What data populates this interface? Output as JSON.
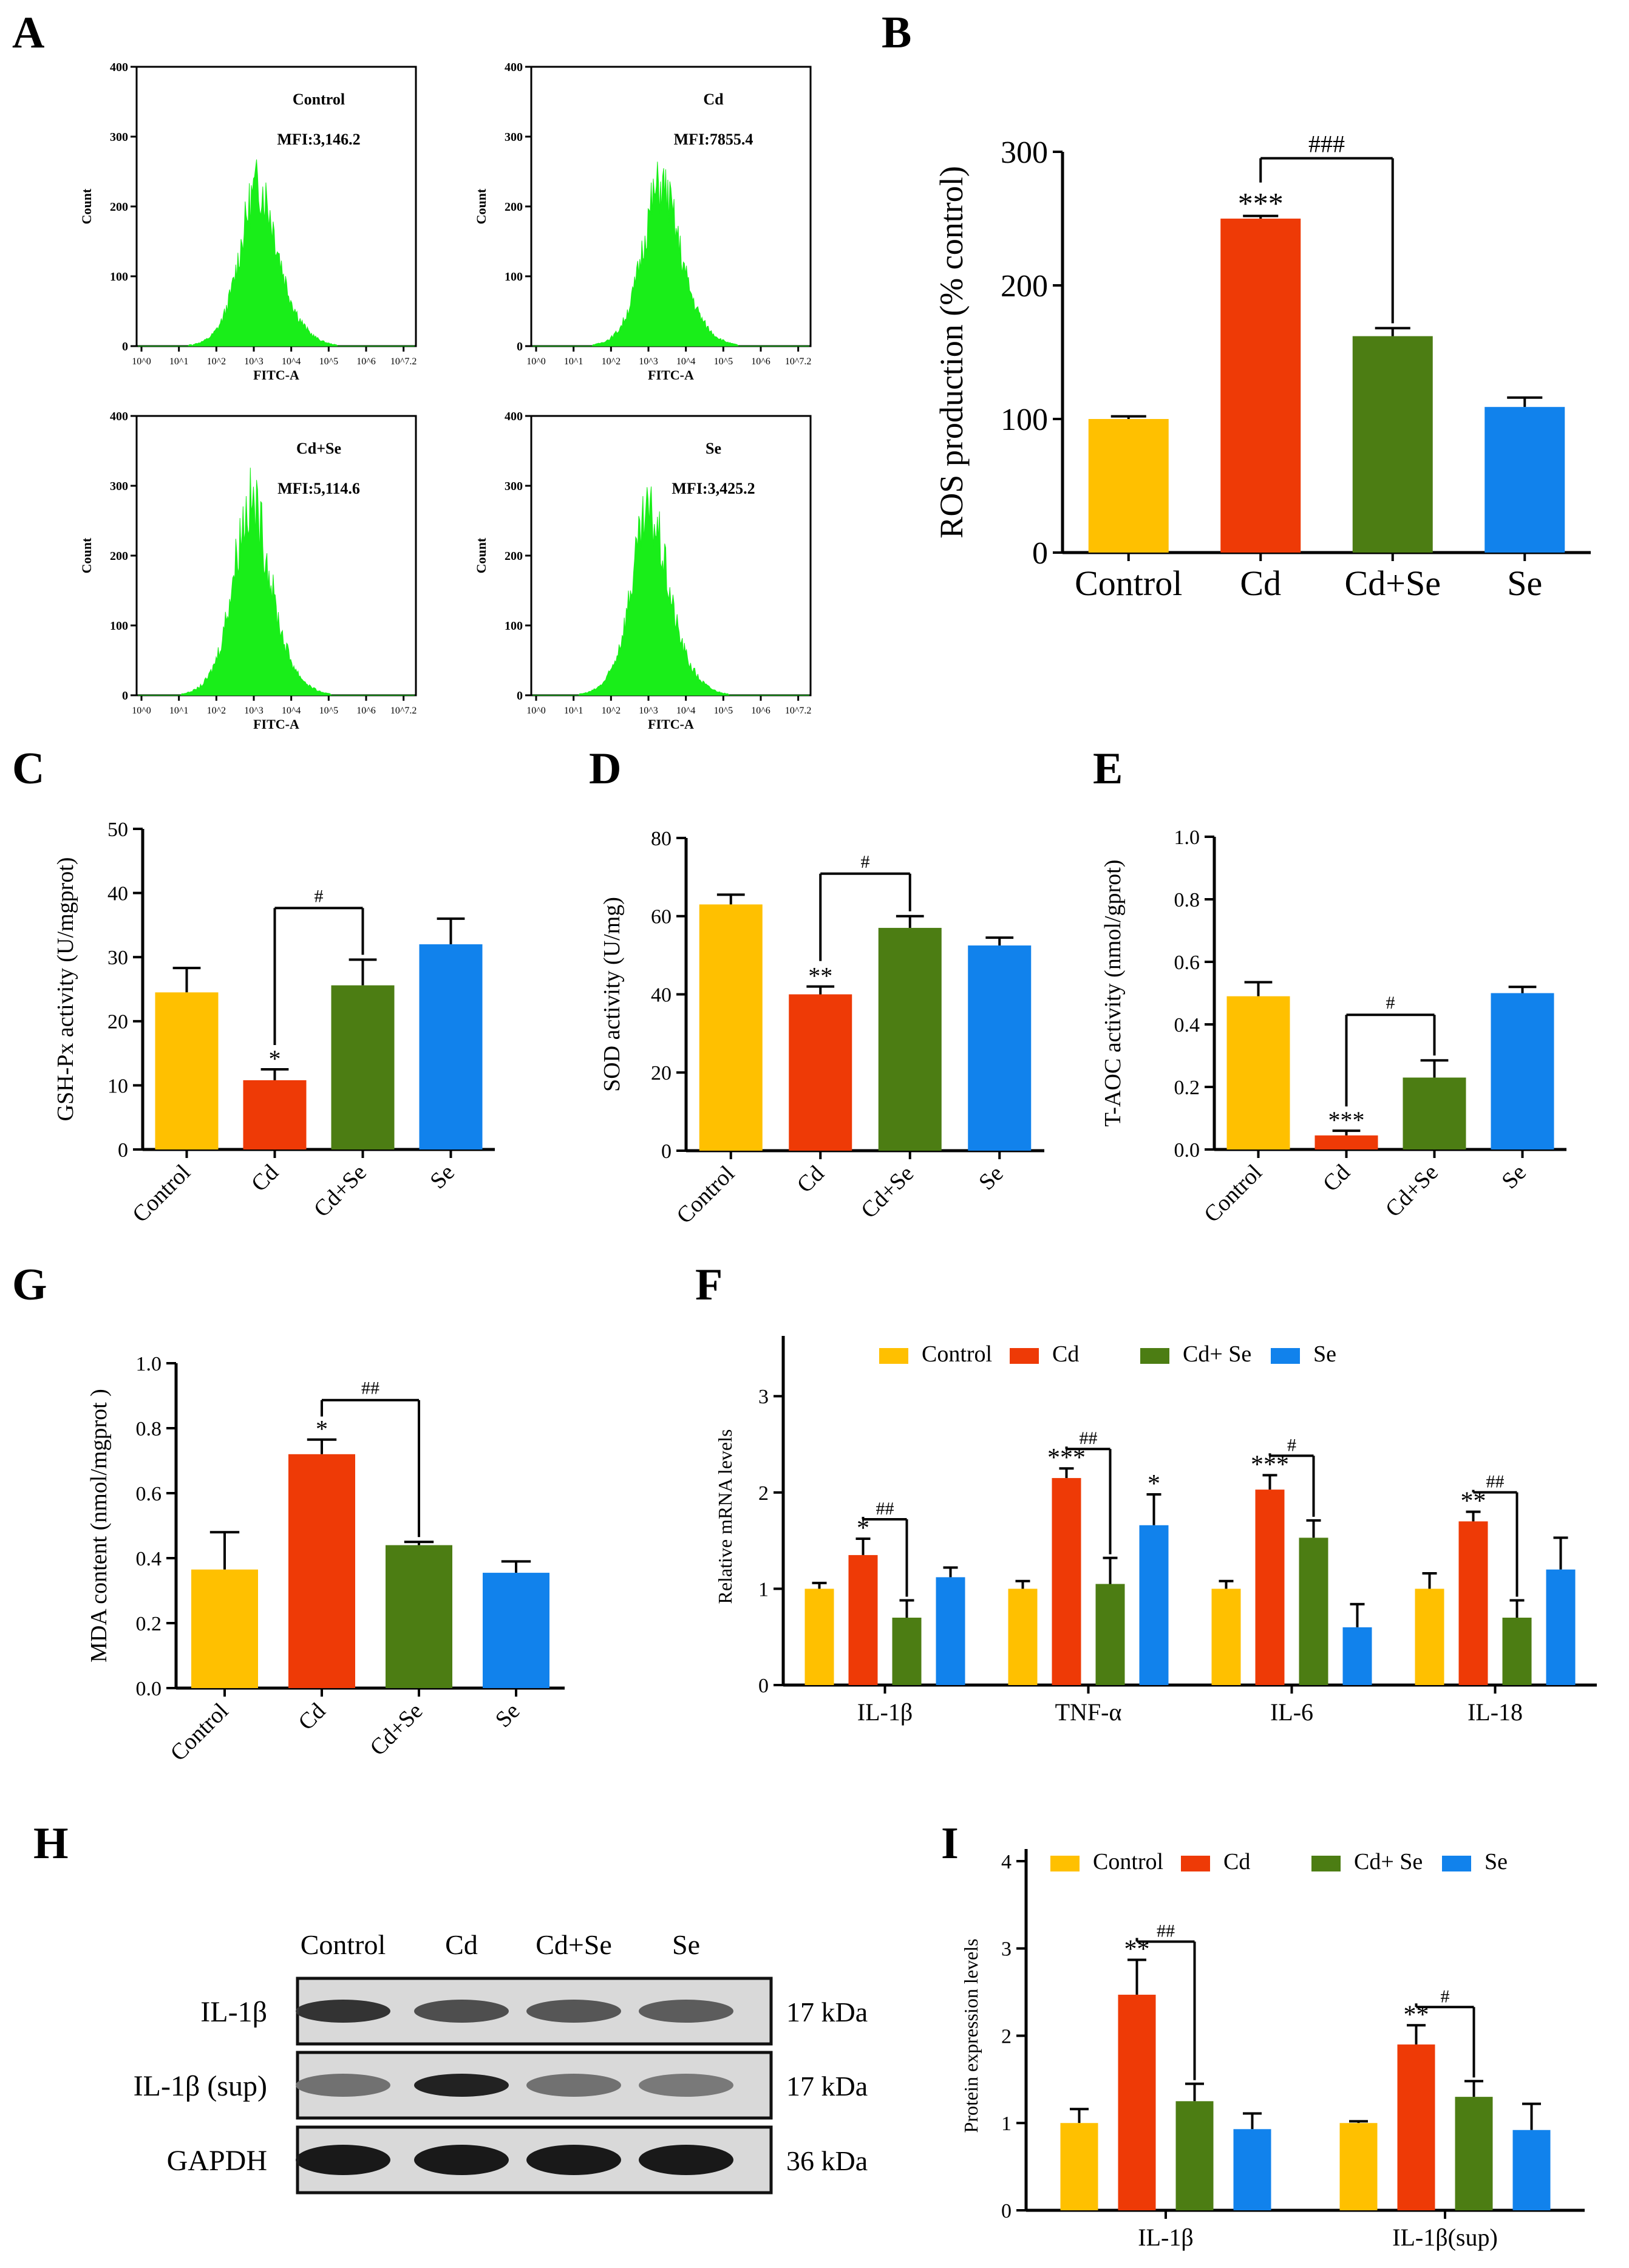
{
  "colors": {
    "Control": "#FFC000",
    "Cd": "#EE3A06",
    "Cd+Se": "#4C7D13",
    "Se": "#1182EC",
    "histogram": "#19EE19",
    "axis": "#000000"
  },
  "chart_data": [
    {
      "panel": "A",
      "type": "histogram",
      "subplots": [
        {
          "label": "Control",
          "mfi": "MFI:3,146.2",
          "peak_count": 250,
          "peak_decade": 3.1
        },
        {
          "label": "Cd",
          "mfi": "MFI:7855.4",
          "peak_count": 250,
          "peak_decade": 3.3
        },
        {
          "label": "Cd+Se",
          "mfi": "MFI:5,114.6",
          "peak_count": 300,
          "peak_decade": 2.9
        },
        {
          "label": "Se",
          "mfi": "MFI:3,425.2",
          "peak_count": 280,
          "peak_decade": 3.0
        }
      ],
      "xlabel": "FITC-A",
      "ylabel": "Count",
      "yticks": [
        "0",
        "100",
        "200",
        "300",
        "400"
      ],
      "xticks": [
        "10^0",
        "10^1",
        "10^2",
        "10^3",
        "10^4",
        "10^5",
        "10^6",
        "10^7.2"
      ]
    },
    {
      "panel": "B",
      "type": "bar",
      "categories": [
        "Control",
        "Cd",
        "Cd+Se",
        "Se"
      ],
      "values": [
        100,
        250,
        162,
        109
      ],
      "errors": [
        2,
        2,
        6,
        7
      ],
      "ylabel": "ROS production (% control)",
      "ylim": [
        0,
        300
      ],
      "yticks": [
        "0",
        "100",
        "200",
        "300"
      ],
      "annotations": [
        {
          "bar": 1,
          "text": "***"
        },
        {
          "bracket": [
            1,
            2
          ],
          "text": "###"
        }
      ]
    },
    {
      "panel": "C",
      "type": "bar",
      "categories": [
        "Control",
        "Cd",
        "Cd+Se",
        "Se"
      ],
      "values": [
        24.5,
        10.8,
        25.6,
        32.0
      ],
      "errors": [
        3.8,
        1.7,
        4.0,
        4.0
      ],
      "ylabel": "GSH-Px activity (U/mgprot)",
      "ylim": [
        0,
        50
      ],
      "yticks": [
        "0",
        "10",
        "20",
        "30",
        "40",
        "50"
      ],
      "annotations": [
        {
          "bar": 1,
          "text": "*"
        },
        {
          "bracket": [
            1,
            2
          ],
          "text": "#"
        }
      ]
    },
    {
      "panel": "D",
      "type": "bar",
      "categories": [
        "Control",
        "Cd",
        "Cd+Se",
        "Se"
      ],
      "values": [
        63,
        40,
        57,
        52.5
      ],
      "errors": [
        2.5,
        2,
        3,
        2
      ],
      "ylabel": "SOD activity (U/mg)",
      "ylim": [
        0,
        80
      ],
      "yticks": [
        "0",
        "20",
        "40",
        "60",
        "80"
      ],
      "annotations": [
        {
          "bar": 1,
          "text": "**"
        },
        {
          "bracket": [
            1,
            2
          ],
          "text": "#"
        }
      ]
    },
    {
      "panel": "E",
      "type": "bar",
      "categories": [
        "Control",
        "Cd",
        "Cd+Se",
        "Se"
      ],
      "values": [
        0.49,
        0.045,
        0.23,
        0.5
      ],
      "errors": [
        0.045,
        0.015,
        0.055,
        0.02
      ],
      "ylabel": "T-AOC activity (nmol/gprot)",
      "ylim": [
        0,
        1.0
      ],
      "yticks": [
        "0.0",
        "0.2",
        "0.4",
        "0.6",
        "0.8",
        "1.0"
      ],
      "annotations": [
        {
          "bar": 1,
          "text": "***"
        },
        {
          "bracket": [
            1,
            2
          ],
          "text": "#"
        }
      ]
    },
    {
      "panel": "G",
      "type": "bar",
      "categories": [
        "Control",
        "Cd",
        "Cd+Se",
        "Se"
      ],
      "values": [
        0.365,
        0.72,
        0.44,
        0.355
      ],
      "errors": [
        0.115,
        0.045,
        0.01,
        0.035
      ],
      "ylabel": "MDA content (nmol/mgprot )",
      "ylim": [
        0,
        1.0
      ],
      "yticks": [
        "0.0",
        "0.2",
        "0.4",
        "0.6",
        "0.8",
        "1.0"
      ],
      "annotations": [
        {
          "bar": 1,
          "text": "*"
        },
        {
          "bracket": [
            1,
            2
          ],
          "text": "##"
        }
      ]
    },
    {
      "panel": "F",
      "type": "grouped-bar",
      "categories": [
        "IL-1β",
        "TNF-α",
        "IL-6",
        "IL-18"
      ],
      "series": [
        {
          "name": "Control",
          "values": [
            1.0,
            1.0,
            1.0,
            1.0
          ],
          "errors": [
            0.06,
            0.08,
            0.08,
            0.16
          ]
        },
        {
          "name": "Cd",
          "values": [
            1.35,
            2.15,
            2.03,
            1.7
          ],
          "errors": [
            0.17,
            0.1,
            0.15,
            0.1
          ]
        },
        {
          "name": "Cd+ Se",
          "values": [
            0.7,
            1.05,
            1.53,
            0.7
          ],
          "errors": [
            0.18,
            0.27,
            0.18,
            0.18
          ]
        },
        {
          "name": "Se",
          "values": [
            1.12,
            1.66,
            0.6,
            1.2
          ],
          "errors": [
            0.1,
            0.32,
            0.24,
            0.33
          ]
        }
      ],
      "ylabel": "Relative  mRNA  levels",
      "ylim": [
        0,
        3.5
      ],
      "yticks": [
        "0",
        "1",
        "2",
        "3"
      ],
      "annotations": [
        {
          "group": 0,
          "bar": 1,
          "text": "*"
        },
        {
          "group": 0,
          "bracket": [
            1,
            2
          ],
          "text": "##"
        },
        {
          "group": 1,
          "bar": 1,
          "text": "***"
        },
        {
          "group": 1,
          "bracket": [
            1,
            2
          ],
          "text": "##"
        },
        {
          "group": 1,
          "bar": 3,
          "text": "*"
        },
        {
          "group": 2,
          "bar": 1,
          "text": "***"
        },
        {
          "group": 2,
          "bracket": [
            1,
            2
          ],
          "text": "#"
        },
        {
          "group": 3,
          "bar": 1,
          "text": "**"
        },
        {
          "group": 3,
          "bracket": [
            1,
            2
          ],
          "text": "##"
        }
      ]
    },
    {
      "panel": "H",
      "type": "western-blot",
      "lanes": [
        "Control",
        "Cd",
        "Cd+Se",
        "Se"
      ],
      "rows": [
        {
          "label": "IL-1β",
          "kda": "17",
          "intensity": [
            0.85,
            0.7,
            0.65,
            0.62
          ]
        },
        {
          "label": "IL-1β (sup)",
          "kda": "17",
          "intensity": [
            0.5,
            0.95,
            0.5,
            0.45
          ]
        },
        {
          "label": "GAPDH",
          "kda": "36",
          "intensity": [
            1,
            1,
            1,
            1
          ]
        }
      ],
      "unit": "kDa"
    },
    {
      "panel": "I",
      "type": "grouped-bar",
      "categories": [
        "IL-1β",
        "IL-1β(sup)"
      ],
      "series": [
        {
          "name": "Control",
          "values": [
            1.0,
            1.0
          ],
          "errors": [
            0.16,
            0.02
          ]
        },
        {
          "name": "Cd",
          "values": [
            2.47,
            1.9
          ],
          "errors": [
            0.4,
            0.22
          ]
        },
        {
          "name": "Cd+ Se",
          "values": [
            1.25,
            1.3
          ],
          "errors": [
            0.2,
            0.18
          ]
        },
        {
          "name": "Se",
          "values": [
            0.93,
            0.92
          ],
          "errors": [
            0.18,
            0.3
          ]
        }
      ],
      "ylabel": "Protein expression levels",
      "ylim": [
        0,
        4
      ],
      "yticks": [
        "0",
        "1",
        "2",
        "3",
        "4"
      ],
      "annotations": [
        {
          "group": 0,
          "bar": 1,
          "text": "**"
        },
        {
          "group": 0,
          "bracket": [
            1,
            2
          ],
          "text": "##"
        },
        {
          "group": 1,
          "bar": 1,
          "text": "**"
        },
        {
          "group": 1,
          "bracket": [
            1,
            2
          ],
          "text": "#"
        }
      ]
    }
  ]
}
